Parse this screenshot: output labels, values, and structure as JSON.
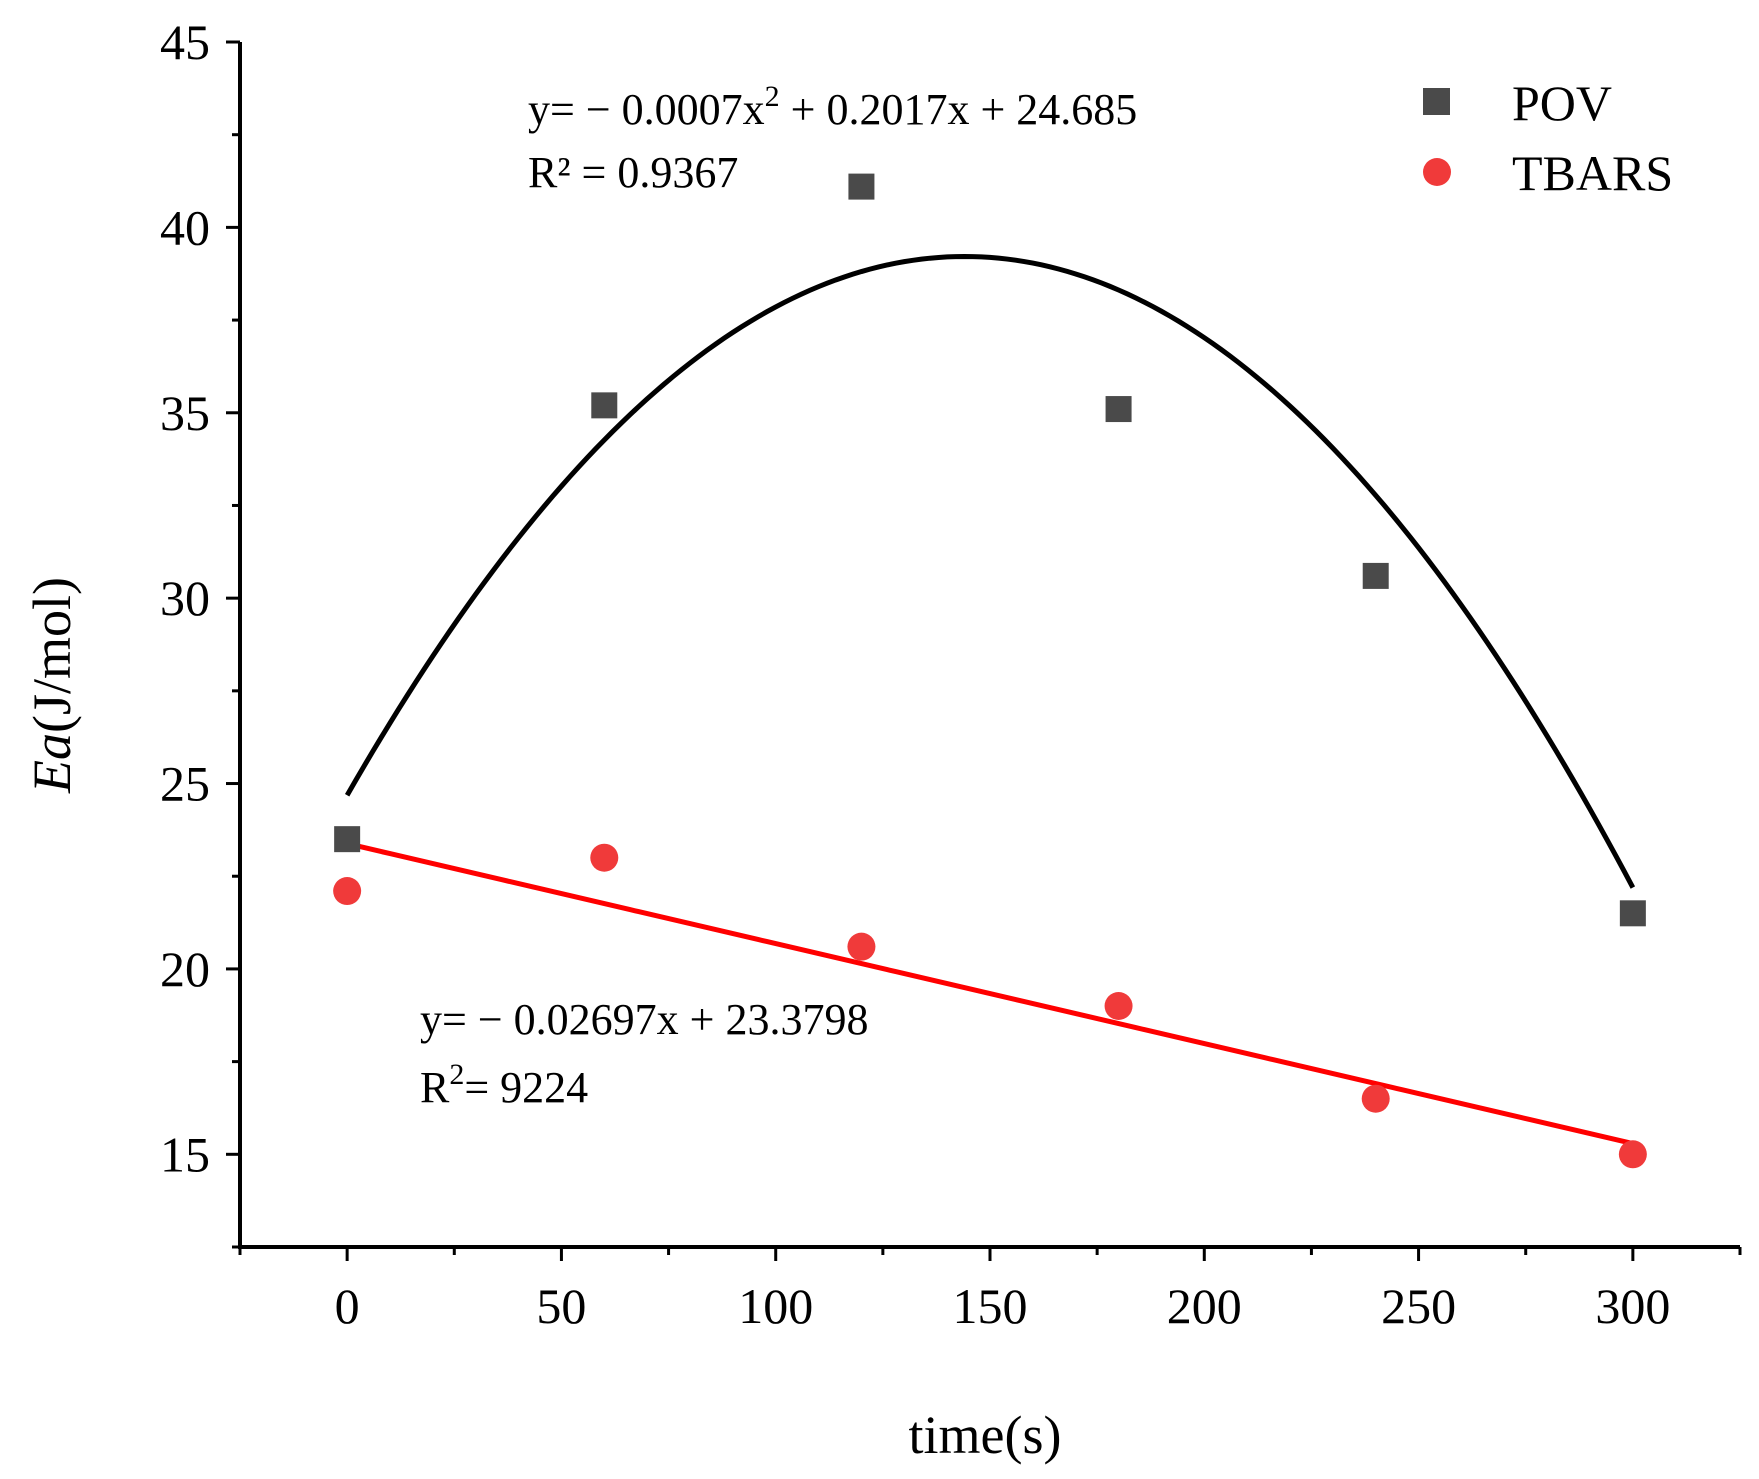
{
  "colors": {
    "pov": "#4a4a4a",
    "tbars": "#f03a3a",
    "pov_fit": "#000000",
    "tbars_fit": "#ff0000"
  },
  "chart_data": {
    "type": "scatter",
    "title": "",
    "xlabel": "time(s)",
    "ylabel_italic": "Ea",
    "ylabel_rest": "(J/mol)",
    "xlim": [
      -25,
      325
    ],
    "ylim": [
      12.5,
      45
    ],
    "x_ticks": [
      0,
      50,
      100,
      150,
      200,
      250,
      300
    ],
    "x_tick_labels": [
      "0",
      "50",
      "100",
      "150",
      "200",
      "250",
      "300"
    ],
    "y_ticks": [
      15,
      20,
      25,
      30,
      35,
      40,
      45
    ],
    "y_tick_labels": [
      "15",
      "20",
      "25",
      "30",
      "35",
      "40",
      "45"
    ],
    "x_minor_ticks": [
      -25,
      25,
      75,
      125,
      175,
      225,
      275,
      325
    ],
    "y_minor_ticks": [
      12.5,
      17.5,
      22.5,
      27.5,
      32.5,
      37.5,
      42.5
    ],
    "legend_position": "top-right",
    "series": [
      {
        "name": "POV",
        "marker": "square",
        "x": [
          0,
          60,
          120,
          180,
          240,
          300
        ],
        "y": [
          23.5,
          35.2,
          41.1,
          35.1,
          30.6,
          21.5
        ],
        "fit": {
          "kind": "quadratic",
          "a": -0.0007,
          "b": 0.2017,
          "c": 24.685,
          "x_range": [
            0,
            300
          ]
        }
      },
      {
        "name": "TBARS",
        "marker": "circle",
        "x": [
          0,
          60,
          120,
          180,
          240,
          300
        ],
        "y": [
          22.1,
          23.0,
          20.6,
          19.0,
          16.5,
          15.0
        ],
        "fit": {
          "kind": "linear",
          "a": 0,
          "b": -0.02697,
          "c": 23.3798,
          "x_range": [
            0,
            300
          ]
        }
      }
    ],
    "annotations": {
      "pov_equation_prefix": "y= − 0.0007x",
      "pov_equation_sup": "2",
      "pov_equation_suffix": " + 0.2017x + 24.685",
      "pov_r2": "R² = 0.9367",
      "tbars_equation": "y= − 0.02697x + 23.3798",
      "tbars_r2_prefix": "R",
      "tbars_r2_sup": "2",
      "tbars_r2_suffix": "= 9224"
    }
  }
}
